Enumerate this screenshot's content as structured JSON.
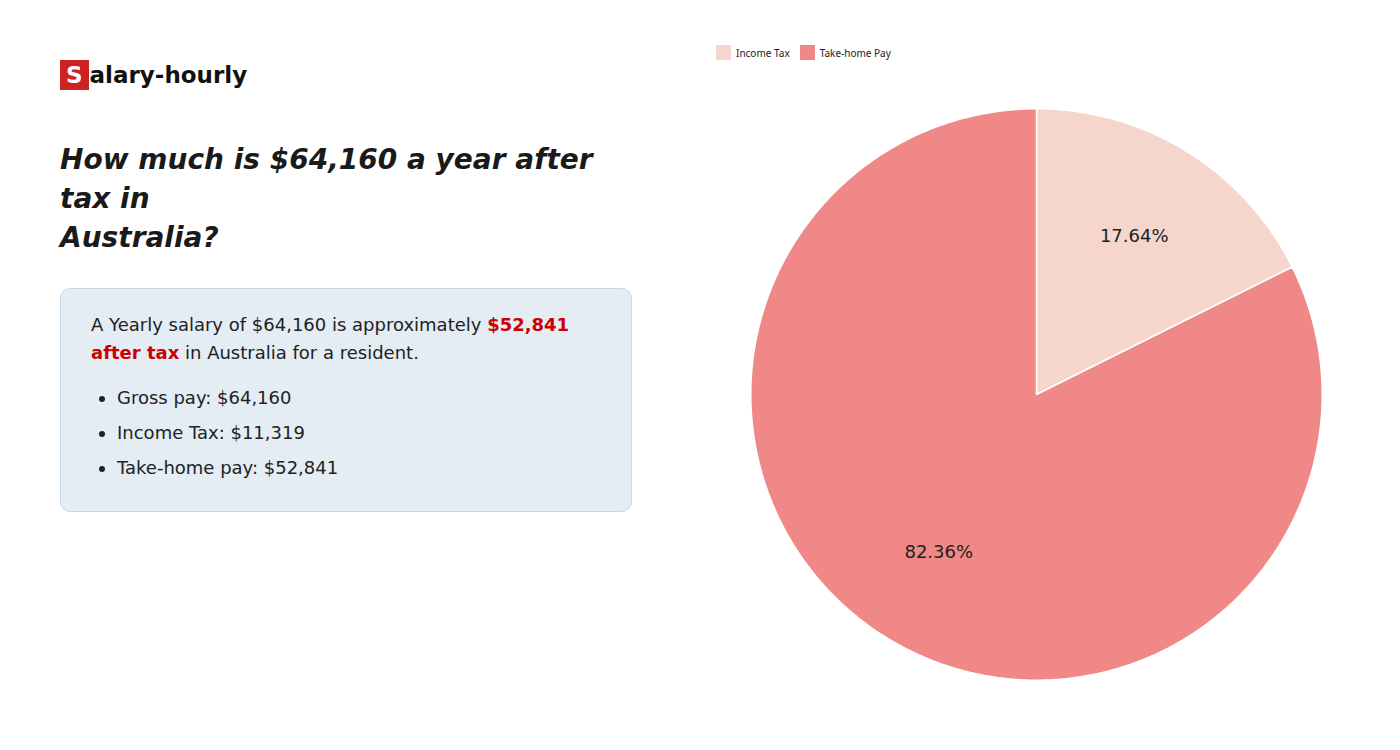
{
  "chart_data": {
    "type": "pie",
    "title": "How much is $64,160 a year after tax in\nAustralia?",
    "categories": [
      "Income Tax",
      "Take-home Pay"
    ],
    "values": [
      17.64,
      82.36
    ],
    "value_labels": [
      "17.64%",
      "82.36%"
    ],
    "colors": [
      "#f5d5cc",
      "#f08888"
    ],
    "legend": "top",
    "data_labels": true,
    "annotations": [
      {
        "text": "Salary-hourly",
        "color": "#cc2222"
      },
      {
        "text": "A Yearly salary of $64,160 is approximately "
      },
      {
        "text": "$52,841 after tax",
        "color": "#cc0000"
      },
      {
        "text": " in Australia for a resident."
      },
      {
        "text": "Gross pay: $64,160"
      },
      {
        "text": "Income Tax: $11,319"
      },
      {
        "text": "Take-home pay: $52,841"
      }
    ]
  }
}
